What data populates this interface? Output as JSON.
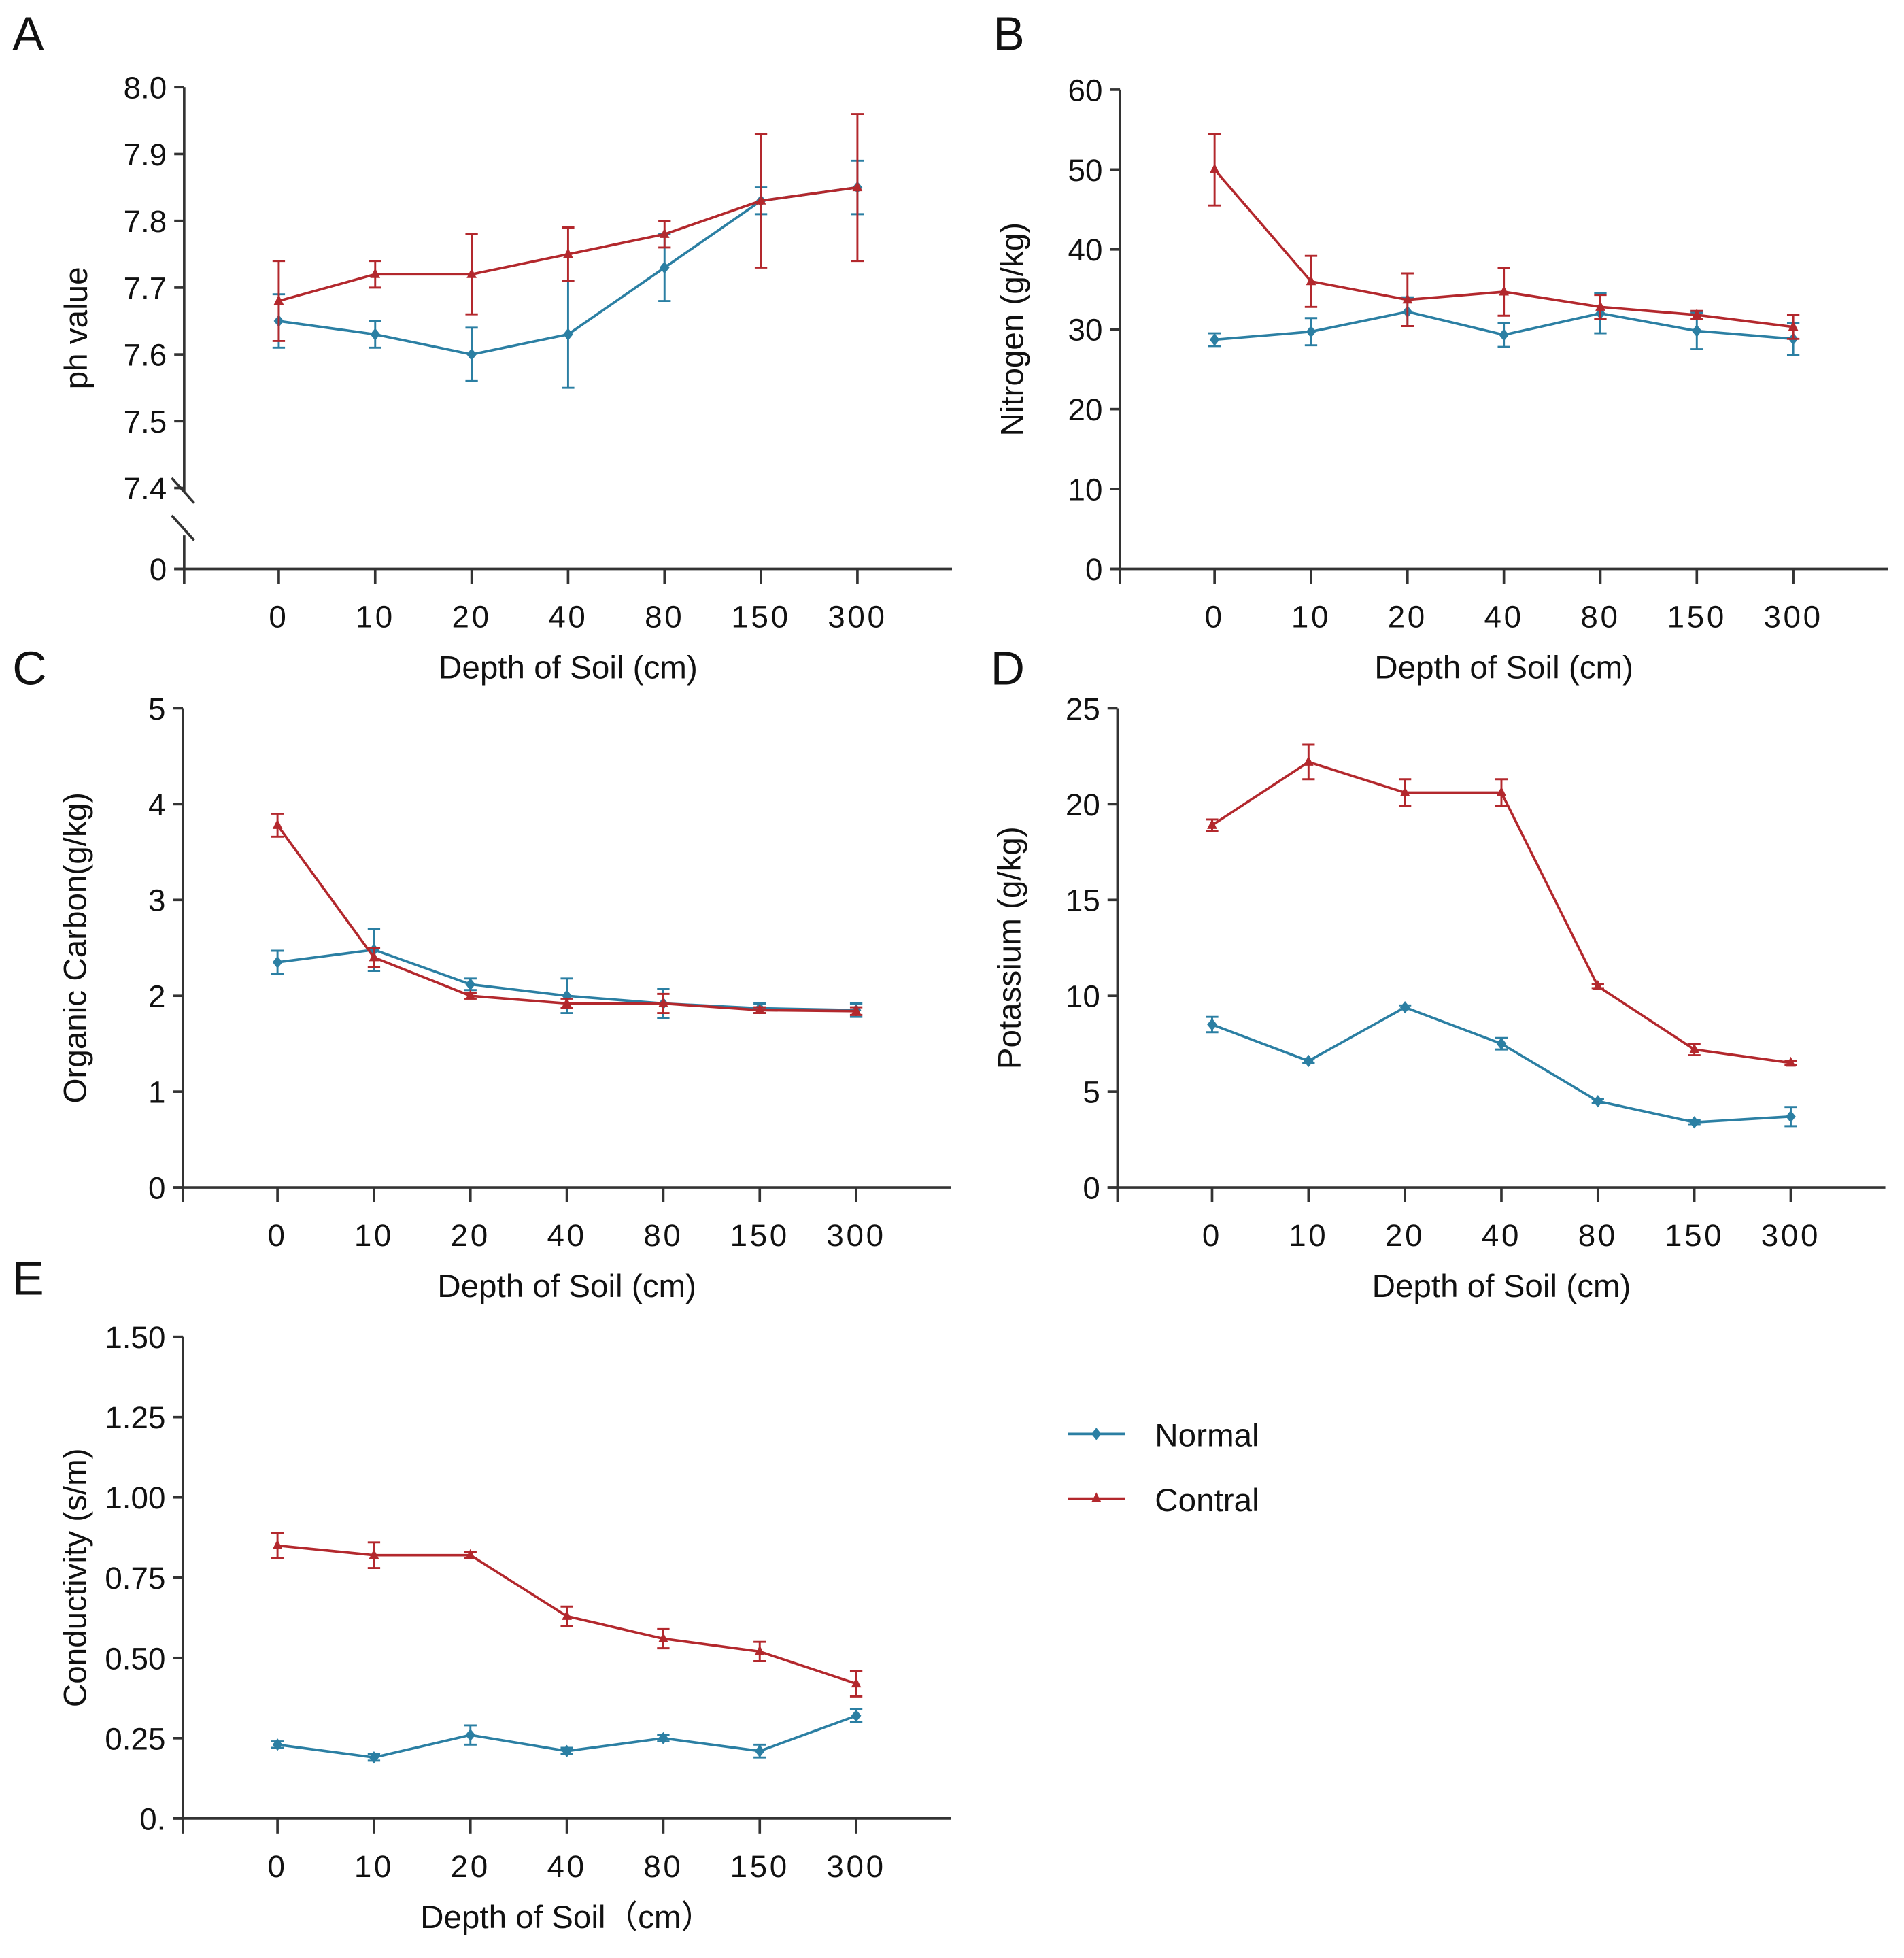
{
  "chart_data": [
    {
      "panel": "A",
      "type": "line",
      "ylabel": "ph value",
      "xlabel": "Depth of Soil (cm)",
      "categories": [
        "0",
        "10",
        "20",
        "40",
        "80",
        "150",
        "300"
      ],
      "yticks": [
        "0",
        "7.4",
        "7.5",
        "7.6",
        "7.7",
        "7.8",
        "7.9",
        "8.0"
      ],
      "ylim": [
        7.4,
        8.0
      ],
      "axis_break": true,
      "series": [
        {
          "name": "Normal",
          "values": [
            7.65,
            7.63,
            7.6,
            7.63,
            7.73,
            7.83,
            7.85
          ],
          "errors": [
            0.04,
            0.02,
            0.04,
            0.08,
            0.05,
            0.02,
            0.04
          ]
        },
        {
          "name": "Contral",
          "values": [
            7.68,
            7.72,
            7.72,
            7.75,
            7.78,
            7.83,
            7.85
          ],
          "errors": [
            0.06,
            0.02,
            0.06,
            0.04,
            0.02,
            0.1,
            0.11
          ]
        }
      ]
    },
    {
      "panel": "B",
      "type": "line",
      "ylabel": "Nitrogen (g/kg)",
      "xlabel": "Depth of Soil (cm)",
      "categories": [
        "0",
        "10",
        "20",
        "40",
        "80",
        "150",
        "300"
      ],
      "yticks": [
        "0",
        "10",
        "20",
        "30",
        "40",
        "50",
        "60"
      ],
      "ylim": [
        0,
        60
      ],
      "series": [
        {
          "name": "Normal",
          "values": [
            28.7,
            29.7,
            32.2,
            29.3,
            32.0,
            29.8,
            28.8
          ],
          "errors": [
            0.8,
            1.7,
            1.8,
            1.5,
            2.5,
            2.3,
            2.0
          ]
        },
        {
          "name": "Contral",
          "values": [
            50.0,
            36.0,
            33.7,
            34.7,
            32.8,
            31.8,
            30.3
          ],
          "errors": [
            4.5,
            3.2,
            3.3,
            3.0,
            1.5,
            0.5,
            1.5
          ]
        }
      ]
    },
    {
      "panel": "C",
      "type": "line",
      "ylabel": "Organic Carbon(g/kg)",
      "xlabel": "Depth of Soil (cm)",
      "categories": [
        "0",
        "10",
        "20",
        "40",
        "80",
        "150",
        "300"
      ],
      "yticks": [
        "0",
        "1",
        "2",
        "3",
        "4",
        "5"
      ],
      "ylim": [
        0,
        5
      ],
      "series": [
        {
          "name": "Normal",
          "values": [
            2.35,
            2.48,
            2.12,
            2.0,
            1.92,
            1.87,
            1.85
          ],
          "errors": [
            0.12,
            0.22,
            0.06,
            0.18,
            0.15,
            0.05,
            0.07
          ]
        },
        {
          "name": "Contral",
          "values": [
            3.78,
            2.4,
            2.0,
            1.92,
            1.92,
            1.85,
            1.84
          ],
          "errors": [
            0.12,
            0.1,
            0.03,
            0.05,
            0.1,
            0.03,
            0.04
          ]
        }
      ]
    },
    {
      "panel": "D",
      "type": "line",
      "ylabel": "Potassium (g/kg)",
      "xlabel": "Depth of Soil (cm)",
      "categories": [
        "0",
        "10",
        "20",
        "40",
        "80",
        "150",
        "300"
      ],
      "yticks": [
        "0",
        "5",
        "10",
        "15",
        "20",
        "25"
      ],
      "ylim": [
        0,
        25
      ],
      "series": [
        {
          "name": "Normal",
          "values": [
            8.5,
            6.6,
            9.4,
            7.5,
            4.5,
            3.4,
            3.7
          ],
          "errors": [
            0.4,
            0.1,
            0.1,
            0.3,
            0.1,
            0.1,
            0.5
          ]
        },
        {
          "name": "Contral",
          "values": [
            18.9,
            22.2,
            20.6,
            20.6,
            10.5,
            7.2,
            6.5
          ],
          "errors": [
            0.3,
            0.9,
            0.7,
            0.7,
            0.1,
            0.3,
            0.1
          ]
        }
      ]
    },
    {
      "panel": "E",
      "type": "line",
      "ylabel": "Conductivity (s/m)",
      "xlabel": "Depth of Soil（cm）",
      "categories": [
        "0",
        "10",
        "20",
        "40",
        "80",
        "150",
        "300"
      ],
      "yticks": [
        "0.",
        "0.25",
        "0.50",
        "0.75",
        "1.00",
        "1.25",
        "1.50"
      ],
      "ylim": [
        0,
        1.5
      ],
      "series": [
        {
          "name": "Normal",
          "values": [
            0.23,
            0.19,
            0.26,
            0.21,
            0.25,
            0.21,
            0.32
          ],
          "errors": [
            0.01,
            0.01,
            0.03,
            0.01,
            0.01,
            0.02,
            0.02
          ]
        },
        {
          "name": "Contral",
          "values": [
            0.85,
            0.82,
            0.82,
            0.63,
            0.56,
            0.52,
            0.42
          ],
          "errors": [
            0.04,
            0.04,
            0.01,
            0.03,
            0.03,
            0.03,
            0.04
          ]
        }
      ]
    }
  ],
  "legend": {
    "placement": "right of panel E",
    "items": [
      {
        "label": "Normal",
        "color": "#2b7fa3",
        "marker": "diamond"
      },
      {
        "label": "Contral",
        "color": "#b3282d",
        "marker": "triangle"
      }
    ]
  }
}
